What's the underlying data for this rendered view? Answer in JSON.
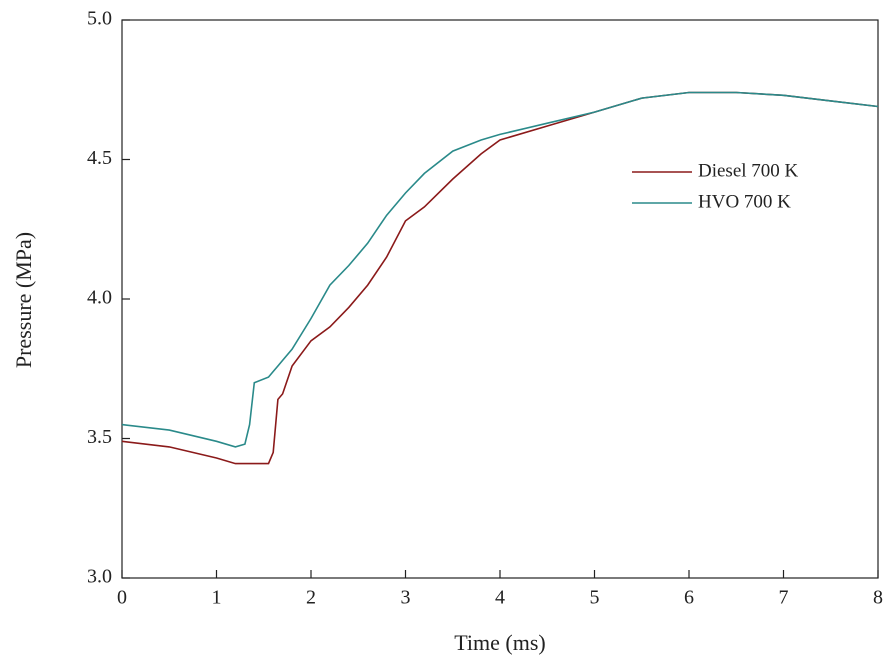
{
  "chart_data": {
    "type": "line",
    "x_label": "Time (ms)",
    "y_label": "Pressure (MPa)",
    "x": [
      0,
      0.5,
      1,
      1.2,
      1.3,
      1.35,
      1.4,
      1.55,
      1.6,
      1.65,
      1.7,
      1.8,
      2,
      2.2,
      2.4,
      2.6,
      2.8,
      3,
      3.2,
      3.5,
      3.8,
      4,
      4.5,
      5,
      5.5,
      6,
      6.5,
      7,
      7.5,
      8
    ],
    "series": [
      {
        "name": "Diesel 700 K",
        "color": "#8b1a1a",
        "values": [
          3.49,
          3.47,
          3.43,
          3.41,
          3.41,
          3.41,
          3.41,
          3.41,
          3.45,
          3.64,
          3.66,
          3.76,
          3.85,
          3.9,
          3.97,
          4.05,
          4.15,
          4.28,
          4.33,
          4.43,
          4.52,
          4.57,
          4.62,
          4.67,
          4.72,
          4.74,
          4.74,
          4.73,
          4.71,
          4.69
        ]
      },
      {
        "name": "HVO 700 K",
        "color": "#2a8a8a",
        "values": [
          3.55,
          3.53,
          3.49,
          3.47,
          3.48,
          3.55,
          3.7,
          3.72,
          3.74,
          3.76,
          3.78,
          3.82,
          3.93,
          4.05,
          4.12,
          4.2,
          4.3,
          4.38,
          4.45,
          4.53,
          4.57,
          4.59,
          4.63,
          4.67,
          4.72,
          4.74,
          4.74,
          4.73,
          4.71,
          4.69
        ]
      }
    ],
    "xlim": [
      0,
      8
    ],
    "xticks": [
      0,
      1,
      2,
      3,
      4,
      5,
      6,
      7,
      8
    ],
    "ylim": [
      3,
      5
    ],
    "yticks": [
      {
        "value": 3,
        "label": "3.0"
      },
      3.5,
      {
        "value": 4,
        "label": "4.0"
      },
      4.5,
      {
        "value": 5,
        "label": "5.0"
      }
    ],
    "legend": "upper right"
  }
}
